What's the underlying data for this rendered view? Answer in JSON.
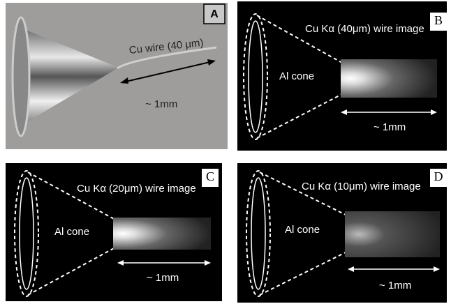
{
  "panels": [
    {
      "label": "A",
      "wire_label": "Cu wire (40 μm)",
      "scale_label": "~ 1mm"
    },
    {
      "label": "B",
      "title": "Cu Kα (40μm) wire image",
      "cone_label": "Al cone",
      "scale_label": "~ 1mm"
    },
    {
      "label": "C",
      "title": "Cu Kα (20μm) wire image",
      "cone_label": "Al cone",
      "scale_label": "~ 1mm"
    },
    {
      "label": "D",
      "title": "Cu Kα (10μm) wire image",
      "cone_label": "Al cone",
      "scale_label": "~ 1mm"
    }
  ]
}
